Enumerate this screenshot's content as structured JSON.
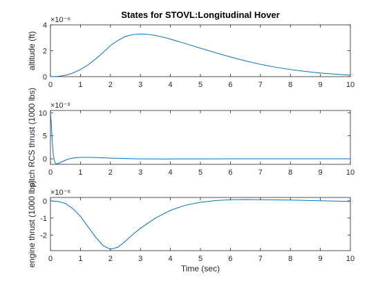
{
  "figure": {
    "background": "#ffffff",
    "series_color": "#0072bd",
    "grid_color": "#e6e6e6",
    "axis_color": "#262626"
  },
  "chart_data": [
    {
      "type": "line",
      "title": "States for STOVL:Longitudinal Hover",
      "ylabel": "altitude (ft)",
      "xlabel": "",
      "exponent_label": "×10⁻⁶",
      "xlim": [
        0,
        10
      ],
      "ylim": [
        0,
        4
      ],
      "xticks": [
        0,
        1,
        2,
        3,
        4,
        5,
        6,
        7,
        8,
        9,
        10
      ],
      "yticks": [
        0,
        2,
        4
      ],
      "grid": true,
      "series": [
        {
          "x": [
            0,
            0.25,
            0.5,
            0.75,
            1,
            1.25,
            1.5,
            1.75,
            2,
            2.25,
            2.5,
            2.75,
            3,
            3.25,
            3.5,
            3.75,
            4,
            4.5,
            5,
            5.5,
            6,
            6.5,
            7,
            7.5,
            8,
            8.5,
            9,
            9.5,
            10
          ],
          "values": [
            0,
            0.02,
            0.1,
            0.28,
            0.55,
            0.9,
            1.35,
            1.85,
            2.4,
            2.8,
            3.1,
            3.25,
            3.3,
            3.27,
            3.18,
            3.05,
            2.9,
            2.55,
            2.2,
            1.85,
            1.52,
            1.22,
            0.95,
            0.73,
            0.55,
            0.4,
            0.28,
            0.19,
            0.12
          ]
        }
      ]
    },
    {
      "type": "line",
      "title": "",
      "ylabel": "pitch RCS thrust (1000 lbs)",
      "xlabel": "",
      "exponent_label": "×10⁻³",
      "xlim": [
        0,
        10
      ],
      "ylim": [
        -1.2,
        10.5
      ],
      "xticks": [
        0,
        1,
        2,
        3,
        4,
        5,
        6,
        7,
        8,
        9,
        10
      ],
      "yticks": [
        0,
        5,
        10
      ],
      "grid": true,
      "series": [
        {
          "x": [
            0,
            0.03,
            0.06,
            0.1,
            0.15,
            0.2,
            0.25,
            0.3,
            0.4,
            0.5,
            0.6,
            0.7,
            0.8,
            1,
            1.2,
            1.5,
            2,
            2.5,
            3,
            4,
            5,
            6,
            7,
            8,
            9,
            10
          ],
          "values": [
            10.0,
            7.5,
            4.0,
            0.5,
            -0.8,
            -1.1,
            -1.05,
            -0.9,
            -0.6,
            -0.3,
            -0.05,
            0.1,
            0.2,
            0.3,
            0.32,
            0.28,
            0.15,
            0.05,
            -0.02,
            -0.03,
            -0.01,
            0,
            0,
            0,
            0,
            0
          ]
        }
      ]
    },
    {
      "type": "line",
      "title": "",
      "ylabel": "engine thrust (1000 lbs)",
      "xlabel": "Time (sec)",
      "exponent_label": "×10⁻⁶",
      "xlim": [
        0,
        10
      ],
      "ylim": [
        -2.9,
        0.2
      ],
      "xticks": [
        0,
        1,
        2,
        3,
        4,
        5,
        6,
        7,
        8,
        9,
        10
      ],
      "yticks": [
        -2,
        -1,
        0
      ],
      "grid": true,
      "series": [
        {
          "x": [
            0,
            0.25,
            0.5,
            0.75,
            1,
            1.25,
            1.5,
            1.75,
            2,
            2.25,
            2.5,
            2.75,
            3,
            3.5,
            4,
            4.5,
            5,
            5.5,
            6,
            6.5,
            7,
            7.5,
            8,
            8.5,
            9,
            9.5,
            10
          ],
          "values": [
            0,
            -0.03,
            -0.15,
            -0.45,
            -0.9,
            -1.5,
            -2.1,
            -2.6,
            -2.82,
            -2.7,
            -2.35,
            -1.95,
            -1.6,
            -1.0,
            -0.55,
            -0.25,
            -0.08,
            0.02,
            0.07,
            0.08,
            0.07,
            0.06,
            0.05,
            0.03,
            0.01,
            -0.01,
            -0.03
          ]
        }
      ]
    }
  ]
}
